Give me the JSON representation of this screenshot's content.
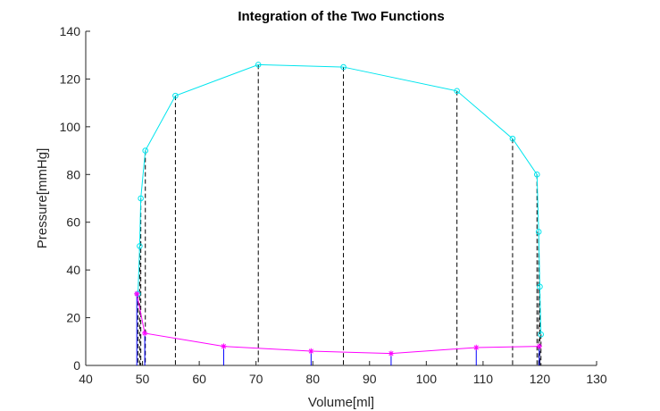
{
  "chart_data": {
    "type": "line",
    "title": "Integration of the Two Functions",
    "xlabel": "Volume[ml]",
    "ylabel": "Pressure[mmHg]",
    "xlim": [
      40,
      130
    ],
    "ylim": [
      0,
      140
    ],
    "xticks": [
      40,
      50,
      60,
      70,
      80,
      90,
      100,
      110,
      120,
      130
    ],
    "yticks": [
      0,
      20,
      40,
      60,
      80,
      100,
      120,
      140
    ],
    "xtick_labels": [
      "40",
      "50",
      "60",
      "70",
      "80",
      "90",
      "100",
      "110",
      "120",
      "130"
    ],
    "ytick_labels": [
      "0",
      "20",
      "40",
      "60",
      "80",
      "100",
      "120",
      "140"
    ],
    "grid": false,
    "series": [
      {
        "color": "#00e5ee",
        "marker": "circle",
        "dropline_color": "#000000",
        "dropline_style": "dashed",
        "x": [
          49.2,
          49.5,
          49.7,
          50.5,
          55.8,
          70.4,
          85.4,
          105.4,
          115.2,
          119.5,
          119.8,
          120.0,
          120.2
        ],
        "y": [
          30,
          50,
          70,
          90,
          113,
          126,
          125,
          115,
          95,
          80,
          56,
          33,
          13
        ]
      },
      {
        "color": "#ff00ff",
        "marker": "star",
        "dropline_color": "#0000ff",
        "dropline_style": "solid",
        "x": [
          49.0,
          50.4,
          64.3,
          79.7,
          93.8,
          108.8,
          119.9
        ],
        "y": [
          30,
          13.5,
          8,
          6,
          5,
          7.5,
          8
        ]
      }
    ]
  }
}
